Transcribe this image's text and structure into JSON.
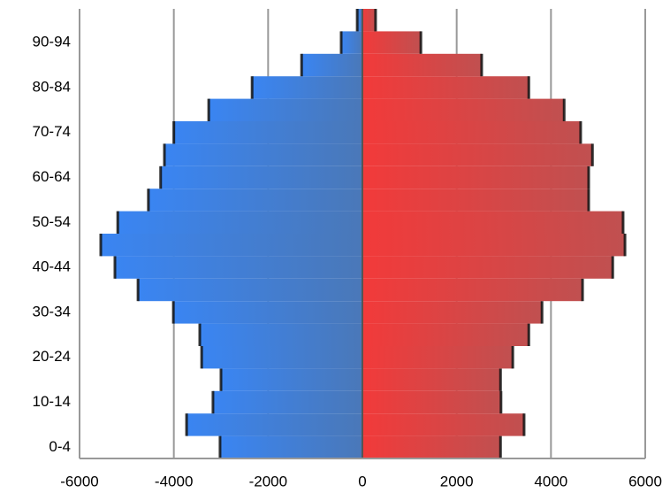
{
  "chart_data": {
    "type": "pyramid",
    "categories": [
      "0-4",
      null,
      "10-14",
      null,
      "20-24",
      null,
      "30-34",
      null,
      "40-44",
      null,
      "50-54",
      null,
      "60-64",
      null,
      "70-74",
      null,
      "80-84",
      null,
      "90-94",
      null
    ],
    "series": [
      {
        "color": "#3a85f2",
        "values": [
          -3020,
          -3730,
          -3170,
          -3000,
          -3410,
          -3450,
          -4010,
          -4760,
          -5250,
          -5550,
          -5190,
          -4540,
          -4280,
          -4200,
          -4000,
          -3260,
          -2340,
          -1290,
          -450,
          -110
        ]
      },
      {
        "color": "#f23a3a",
        "values": [
          2930,
          3430,
          2940,
          2930,
          3190,
          3530,
          3810,
          4670,
          5310,
          5570,
          5530,
          4800,
          4800,
          4880,
          4630,
          4280,
          3530,
          2530,
          1240,
          280
        ]
      }
    ],
    "xlim": [
      -6000,
      6000
    ],
    "xticks": [
      -6000,
      -4000,
      -2000,
      0,
      2000,
      4000,
      6000
    ],
    "grid": true
  }
}
